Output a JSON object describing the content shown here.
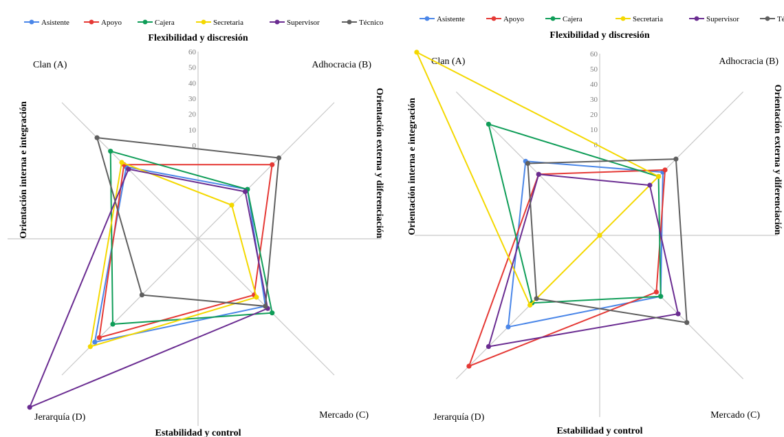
{
  "chart_data": [
    {
      "type": "radar",
      "top_label": "Flexibilidad  y discresión",
      "bottom_label": "Estabilidad  y control",
      "left_label": "Orientación  interna  e integración",
      "right_label": "Orientación  externa y diferenciación",
      "corners": {
        "A": "Clan (A)",
        "B": "Adhocracia (B)",
        "C": "Mercado (C)",
        "D": "Jerarquía (D)"
      },
      "ticks": [
        "0",
        "10",
        "20",
        "30",
        "40",
        "50",
        "60"
      ],
      "legend_position": "top",
      "series": [
        {
          "name": "Asistente",
          "color": "#4a86e8",
          "values": {
            "A": 32,
            "B": 22,
            "C": 30,
            "D": 46
          }
        },
        {
          "name": "Apoyo",
          "color": "#e53935",
          "values": {
            "A": 33,
            "B": 33,
            "C": 25,
            "D": 44
          }
        },
        {
          "name": "Cajera",
          "color": "#0f9d58",
          "values": {
            "A": 39,
            "B": 22,
            "C": 33,
            "D": 38
          }
        },
        {
          "name": "Secretaria",
          "color": "#f4d800",
          "values": {
            "A": 34,
            "B": 15,
            "C": 26,
            "D": 48
          }
        },
        {
          "name": "Supervisor",
          "color": "#6a2c91",
          "values": {
            "A": 31,
            "B": 21,
            "C": 31,
            "D": 75
          }
        },
        {
          "name": "Técnico",
          "color": "#5f5f5f",
          "values": {
            "A": 45,
            "B": 36,
            "C": 30,
            "D": 25
          }
        }
      ]
    },
    {
      "type": "radar",
      "top_label": "Flexibilidad  y discresión",
      "bottom_label": "Estabilidad  y control",
      "left_label": "Orientación  interna  e integración",
      "right_label": "Orientación  externa y diferenciación",
      "corners": {
        "A": "Clan (A)",
        "B": "Adhocracia (B)",
        "C": "Mercado (C)",
        "D": "Jerarquía (D)"
      },
      "ticks": [
        "0",
        "10",
        "20",
        "30",
        "40",
        "50",
        "60"
      ],
      "legend_position": "top",
      "series": [
        {
          "name": "Asistente",
          "color": "#4a86e8",
          "values": {
            "A": 34,
            "B": 29,
            "C": 28,
            "D": 42
          }
        },
        {
          "name": "Apoyo",
          "color": "#e53935",
          "values": {
            "A": 28,
            "B": 30,
            "C": 26,
            "D": 60
          }
        },
        {
          "name": "Cajera",
          "color": "#0f9d58",
          "values": {
            "A": 51,
            "B": 27,
            "C": 28,
            "D": 31
          }
        },
        {
          "name": "Secretaria",
          "color": "#f4d800",
          "values": {
            "A": 84,
            "B": 27,
            "C": 0,
            "D": 32
          }
        },
        {
          "name": "Supervisor",
          "color": "#6a2c91",
          "values": {
            "A": 28,
            "B": 23,
            "C": 36,
            "D": 51
          }
        },
        {
          "name": "Técnico",
          "color": "#5f5f5f",
          "values": {
            "A": 33,
            "B": 35,
            "C": 40,
            "D": 29
          }
        }
      ]
    }
  ]
}
